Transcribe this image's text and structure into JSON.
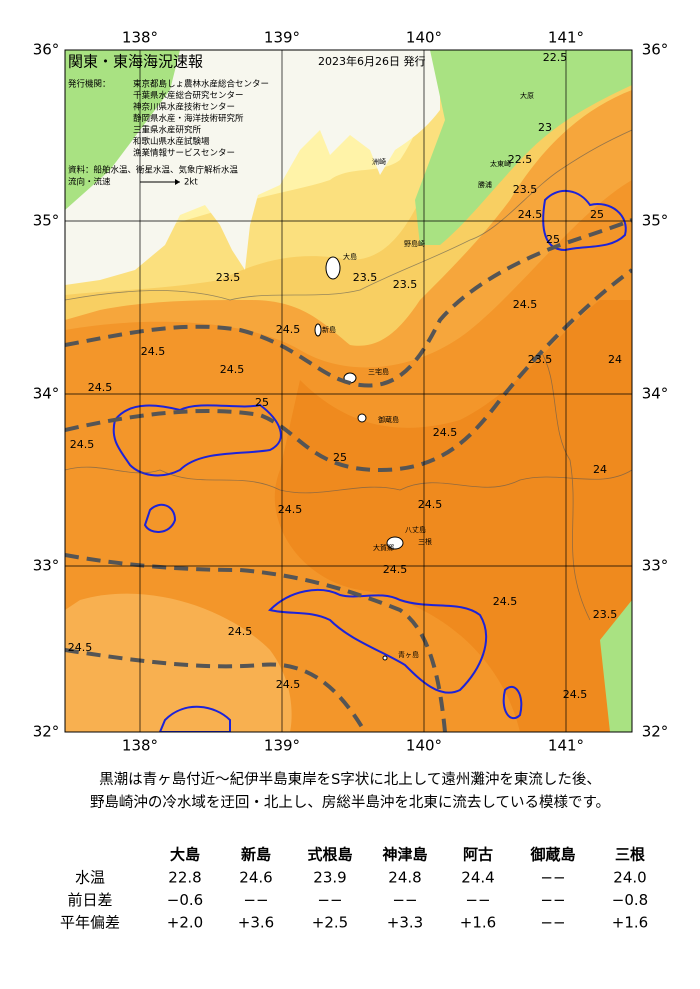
{
  "header": {
    "title": "関東・東海海況速報",
    "date": "2023年6月26日 発行"
  },
  "info": {
    "issuer_label": "発行機関：",
    "issuers": [
      "東京都島しょ農林水産総合センター",
      "千葉県水産総合研究センター",
      "神奈川県水産技術センター",
      "静岡県水産・海洋技術研究所",
      "三重県水産研究所",
      "和歌山県水産試験場",
      "漁業情報サービスセンター"
    ],
    "source": "資料：船舶水温、衛星水温、気象庁解析水温",
    "legend_label": "流向・流速",
    "legend_scale": "2kt"
  },
  "grid": {
    "lon_labels": [
      "138°",
      "139°",
      "140°",
      "141°"
    ],
    "lat_labels": [
      "36°",
      "35°",
      "34°",
      "33°",
      "32°"
    ]
  },
  "places": [
    "大島",
    "新島",
    "三宅島",
    "御蔵島",
    "八丈島",
    "三根",
    "大賀郷",
    "青ヶ島",
    "大原",
    "太東崎",
    "勝浦",
    "洲崎",
    "野島崎"
  ],
  "contour_labels": [
    "22.5",
    "23",
    "22.5",
    "23.5",
    "24.5",
    "25",
    "25",
    "23.5",
    "23.5",
    "23.5",
    "24.5",
    "24.5",
    "24.5",
    "24.5",
    "24.5",
    "25",
    "24.5",
    "24.5",
    "25",
    "24.5",
    "24.5",
    "24.5",
    "24.5",
    "24.5",
    "24.5",
    "24.5",
    "24.5",
    "23.5",
    "24",
    "24",
    "23.5"
  ],
  "description": [
    "黒潮は青ヶ島付近～紀伊半島東岸をS字状に北上して遠州灘沖を東流した後、",
    "野島崎沖の冷水域を迂回・北上し、房総半島沖を北東に流去している模様です。"
  ],
  "table": {
    "columns": [
      "大島",
      "新島",
      "式根島",
      "神津島",
      "阿古",
      "御蔵島",
      "三根"
    ],
    "rows": [
      {
        "label": "水温",
        "cells": [
          "22.8",
          "24.6",
          "23.9",
          "24.8",
          "24.4",
          "−−",
          "24.0"
        ]
      },
      {
        "label": "前日差",
        "cells": [
          "−0.6",
          "−−",
          "−−",
          "−−",
          "−−",
          "−−",
          "−0.8"
        ]
      },
      {
        "label": "平年偏差",
        "cells": [
          "+2.0",
          "+3.6",
          "+2.5",
          "+3.3",
          "+1.6",
          "−−",
          "+1.6"
        ]
      }
    ]
  }
}
